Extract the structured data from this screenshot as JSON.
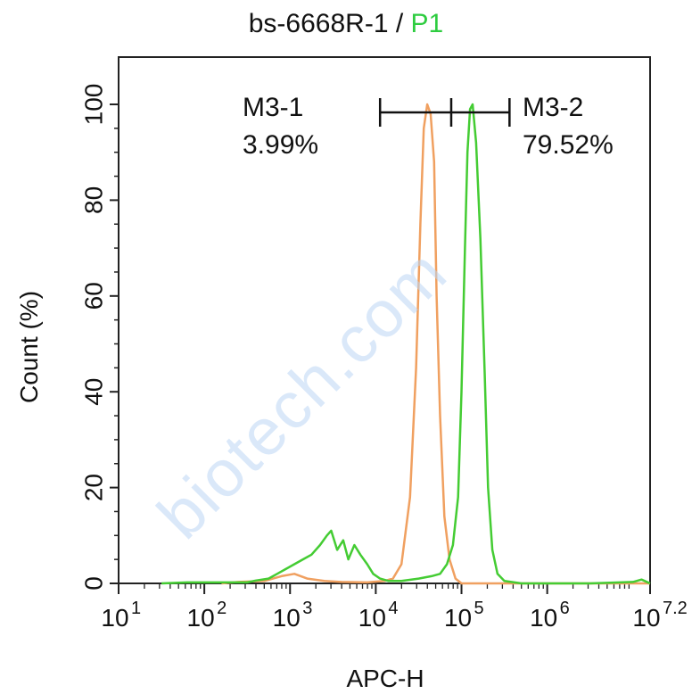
{
  "chart_data": {
    "type": "line",
    "title": {
      "sample": "bs-6668R-1",
      "separator": " / ",
      "gate": "P1"
    },
    "xlabel": "APC-H",
    "ylabel": "Count  (%)",
    "xscale": "log",
    "xlim": [
      1,
      7.2
    ],
    "ylim": [
      0,
      100
    ],
    "x_ticks": [
      {
        "exp": 1,
        "label": "10",
        "sup": "1"
      },
      {
        "exp": 2,
        "label": "10",
        "sup": "2"
      },
      {
        "exp": 3,
        "label": "10",
        "sup": "3"
      },
      {
        "exp": 4,
        "label": "10",
        "sup": "4"
      },
      {
        "exp": 5,
        "label": "10",
        "sup": "5"
      },
      {
        "exp": 6,
        "label": "10",
        "sup": "6"
      },
      {
        "exp": 7.2,
        "label": "10",
        "sup": "7.2"
      }
    ],
    "y_ticks": [
      0,
      20,
      40,
      60,
      80,
      100
    ],
    "gates": [
      {
        "name": "M3-1",
        "percent": "3.99%",
        "x_start": 4.05,
        "x_end": 4.88
      },
      {
        "name": "M3-2",
        "percent": "79.52%",
        "x_start": 4.88,
        "x_end": 5.56
      }
    ],
    "series": [
      {
        "color": "#f0a060",
        "points": [
          [
            2.2,
            0
          ],
          [
            2.4,
            0.3
          ],
          [
            2.7,
            0.5
          ],
          [
            2.9,
            1.5
          ],
          [
            3.05,
            2
          ],
          [
            3.2,
            1
          ],
          [
            3.4,
            0.5
          ],
          [
            3.6,
            0.3
          ],
          [
            3.9,
            0.2
          ],
          [
            4.1,
            0.5
          ],
          [
            4.2,
            1
          ],
          [
            4.3,
            4
          ],
          [
            4.4,
            18
          ],
          [
            4.47,
            45
          ],
          [
            4.52,
            75
          ],
          [
            4.56,
            95
          ],
          [
            4.6,
            100
          ],
          [
            4.64,
            98
          ],
          [
            4.68,
            88
          ],
          [
            4.71,
            60
          ],
          [
            4.75,
            35
          ],
          [
            4.8,
            14
          ],
          [
            4.86,
            5
          ],
          [
            4.93,
            1
          ],
          [
            5.0,
            0
          ],
          [
            7.2,
            0
          ]
        ]
      },
      {
        "color": "#44cc33",
        "points": [
          [
            1.5,
            0
          ],
          [
            1.8,
            0.2
          ],
          [
            2.5,
            0.2
          ],
          [
            2.6,
            0.6
          ],
          [
            2.75,
            1
          ],
          [
            2.85,
            2
          ],
          [
            2.95,
            3
          ],
          [
            3.05,
            4
          ],
          [
            3.15,
            5
          ],
          [
            3.25,
            6
          ],
          [
            3.35,
            8
          ],
          [
            3.43,
            10
          ],
          [
            3.48,
            11
          ],
          [
            3.55,
            7
          ],
          [
            3.62,
            9
          ],
          [
            3.68,
            5
          ],
          [
            3.75,
            8
          ],
          [
            3.82,
            6
          ],
          [
            3.9,
            4
          ],
          [
            3.97,
            2
          ],
          [
            4.05,
            1
          ],
          [
            4.15,
            0.5
          ],
          [
            4.3,
            0.5
          ],
          [
            4.5,
            1
          ],
          [
            4.65,
            1.5
          ],
          [
            4.75,
            2
          ],
          [
            4.83,
            4
          ],
          [
            4.9,
            8
          ],
          [
            4.96,
            18
          ],
          [
            5.0,
            40
          ],
          [
            5.04,
            70
          ],
          [
            5.07,
            90
          ],
          [
            5.1,
            99
          ],
          [
            5.13,
            100
          ],
          [
            5.17,
            92
          ],
          [
            5.22,
            72
          ],
          [
            5.27,
            44
          ],
          [
            5.31,
            20
          ],
          [
            5.36,
            7
          ],
          [
            5.42,
            2
          ],
          [
            5.5,
            0.5
          ],
          [
            5.7,
            0
          ],
          [
            6.5,
            0
          ],
          [
            7.0,
            0.3
          ],
          [
            7.1,
            0.8
          ],
          [
            7.2,
            0
          ]
        ]
      }
    ],
    "grid": false,
    "legend": "none"
  },
  "watermark": "biotech.com"
}
